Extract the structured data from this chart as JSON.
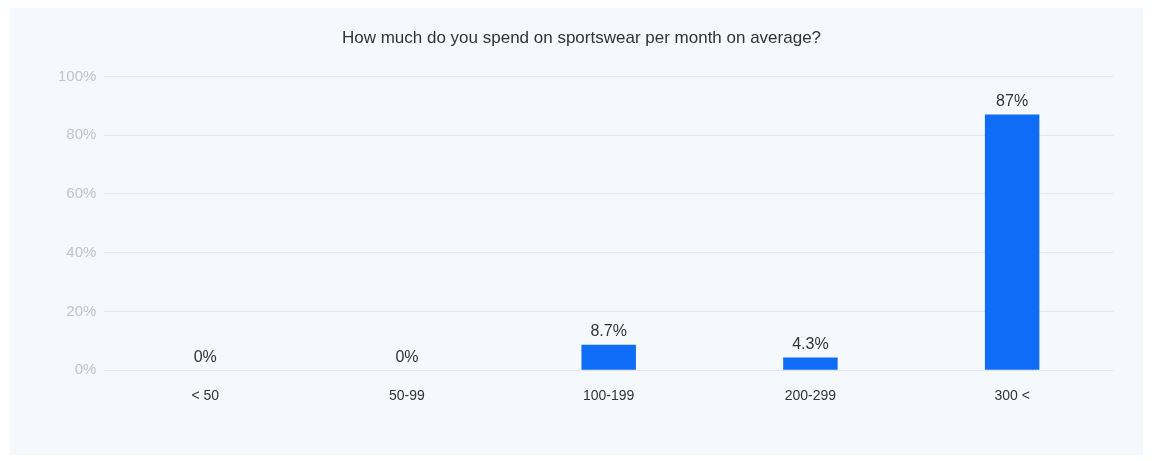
{
  "chart_data": {
    "type": "bar",
    "title": "How much do you spend on sportswear per month on average?",
    "categories": [
      "< 50",
      "50-99",
      "100-199",
      "200-299",
      "300 <"
    ],
    "values": [
      0,
      0,
      8.7,
      4.3,
      87
    ],
    "value_labels": [
      "0%",
      "0%",
      "8.7%",
      "4.3%",
      "87%"
    ],
    "color": "#0f6cf6",
    "ylim": [
      0,
      100
    ],
    "yticks": [
      {
        "value": 0,
        "label": "0%"
      },
      {
        "value": 20,
        "label": "20%"
      },
      {
        "value": 40,
        "label": "40%"
      },
      {
        "value": 60,
        "label": "60%"
      },
      {
        "value": 80,
        "label": "80%"
      },
      {
        "value": 100,
        "label": "100%"
      }
    ],
    "grid": "y",
    "legend": false
  }
}
